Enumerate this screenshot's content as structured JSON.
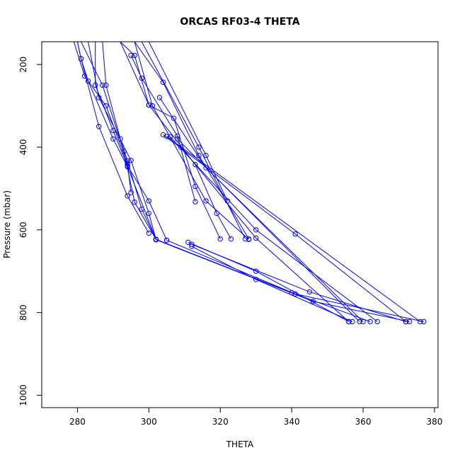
{
  "chart_data": {
    "type": "line",
    "title": "ORCAS RF03-4 THETA",
    "xlabel": "THETA",
    "ylabel": "Pressure (mbar)",
    "xlim": [
      270,
      381
    ],
    "ylim": [
      1030,
      145
    ],
    "y_inverted": true,
    "grid": false,
    "x_ticks": [
      280,
      300,
      320,
      340,
      360,
      380
    ],
    "y_ticks": [
      200,
      400,
      600,
      800,
      1000
    ],
    "series_color": "#0000ff",
    "marker": "open-circle",
    "series": [
      {
        "values": [
          [
            279,
            145
          ],
          [
            282,
            228
          ],
          [
            288,
            300
          ],
          [
            294,
            440
          ],
          [
            295,
            510
          ]
        ]
      },
      {
        "values": [
          [
            280,
            145
          ],
          [
            281,
            186
          ],
          [
            286,
            350
          ],
          [
            294,
            518
          ],
          [
            300,
            608
          ]
        ]
      },
      {
        "values": [
          [
            281,
            145
          ],
          [
            287,
            250
          ],
          [
            293,
            410
          ],
          [
            296,
            533
          ],
          [
            302,
            623
          ]
        ]
      },
      {
        "values": [
          [
            285,
            145
          ],
          [
            285,
            250
          ],
          [
            290,
            360
          ],
          [
            294,
            445
          ],
          [
            300,
            530
          ],
          [
            305,
            625
          ]
        ]
      },
      {
        "values": [
          [
            283,
            145
          ],
          [
            286,
            280
          ],
          [
            295,
            432
          ],
          [
            300,
            560
          ],
          [
            302,
            623
          ]
        ]
      },
      {
        "values": [
          [
            280,
            145
          ],
          [
            281,
            186
          ],
          [
            283,
            240
          ],
          [
            290,
            380
          ],
          [
            294,
            447
          ],
          [
            302,
            623
          ]
        ]
      },
      {
        "values": [
          [
            287,
            145
          ],
          [
            288,
            250
          ],
          [
            292,
            380
          ],
          [
            294,
            433
          ],
          [
            298,
            550
          ],
          [
            302,
            623
          ]
        ]
      },
      {
        "values": [
          [
            302,
            623
          ],
          [
            340,
            752
          ],
          [
            362,
            822
          ]
        ]
      },
      {
        "values": [
          [
            302,
            624
          ],
          [
            346,
            773
          ],
          [
            373,
            822
          ]
        ]
      },
      {
        "values": [
          [
            305,
            625
          ],
          [
            341,
            755
          ],
          [
            377,
            822
          ]
        ]
      },
      {
        "values": [
          [
            311,
            630
          ],
          [
            330,
            700
          ],
          [
            356,
            822
          ]
        ]
      },
      {
        "values": [
          [
            312,
            635
          ],
          [
            345,
            750
          ],
          [
            372,
            822
          ]
        ]
      },
      {
        "values": [
          [
            312,
            640
          ],
          [
            330,
            720
          ],
          [
            357,
            822
          ]
        ]
      },
      {
        "values": [
          [
            295,
            178
          ],
          [
            298,
            233
          ],
          [
            308,
            373
          ],
          [
            313,
            532
          ]
        ]
      },
      {
        "values": [
          [
            292,
            145
          ],
          [
            296,
            178
          ],
          [
            300,
            298
          ],
          [
            313,
            442
          ],
          [
            319,
            560
          ],
          [
            323,
            622
          ]
        ]
      },
      {
        "values": [
          [
            296,
            145
          ],
          [
            301,
            300
          ],
          [
            316,
            530
          ],
          [
            328,
            623
          ]
        ]
      },
      {
        "values": [
          [
            292,
            145
          ],
          [
            300,
            298
          ],
          [
            307,
            330
          ],
          [
            313,
            495
          ],
          [
            320,
            622
          ]
        ]
      },
      {
        "values": [
          [
            296,
            145
          ],
          [
            304,
            243
          ],
          [
            314,
            420
          ],
          [
            328,
            622
          ]
        ]
      },
      {
        "values": [
          [
            298,
            145
          ],
          [
            314,
            400
          ],
          [
            327,
            622
          ]
        ]
      },
      {
        "values": [
          [
            300,
            145
          ],
          [
            316,
            420
          ],
          [
            322,
            530
          ]
        ]
      },
      {
        "values": [
          [
            303,
            280
          ],
          [
            316,
            450
          ],
          [
            360,
            822
          ]
        ]
      },
      {
        "values": [
          [
            306,
            375
          ],
          [
            330,
            600
          ],
          [
            364,
            822
          ]
        ]
      },
      {
        "values": [
          [
            309,
            400
          ],
          [
            330,
            620
          ],
          [
            356,
            822
          ]
        ]
      },
      {
        "values": [
          [
            304,
            370
          ],
          [
            341,
            610
          ],
          [
            372,
            822
          ]
        ]
      },
      {
        "values": [
          [
            305,
            374
          ],
          [
            376,
            822
          ]
        ]
      },
      {
        "values": [
          [
            308,
            380
          ],
          [
            359,
            822
          ]
        ]
      }
    ]
  }
}
